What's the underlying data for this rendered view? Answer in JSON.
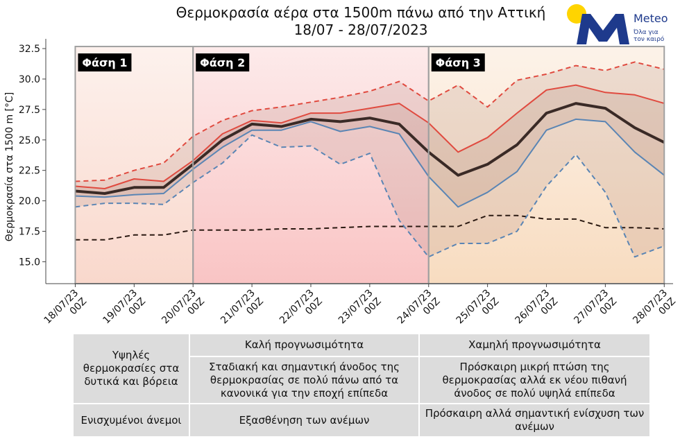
{
  "title": {
    "line1": "Θερμοκρασία αέρα στα 1500m πάνω από την Αττική",
    "line2": "18/07 - 28/07/2023"
  },
  "logo": {
    "brand": "Meteo",
    "tagline_1": "Όλα για",
    "tagline_2": "τον καιρό",
    "sun_color": "#ffd400",
    "mark_color": "#1e3a8c"
  },
  "chart_data": {
    "type": "line",
    "ylabel": "Θερμοκρασία στα 1500 m [°C]",
    "ylim": [
      13.2,
      33.3
    ],
    "yticks": [
      15.0,
      17.5,
      20.0,
      22.5,
      25.0,
      27.5,
      30.0,
      32.5
    ],
    "ytick_labels": [
      "15.0",
      "17.5",
      "20.0",
      "22.5",
      "25.0",
      "27.5",
      "30.0",
      "32.5"
    ],
    "x": [
      0,
      0.5,
      1,
      1.5,
      2,
      2.5,
      3,
      3.5,
      4,
      4.5,
      5,
      5.5,
      6,
      6.5,
      7,
      7.5,
      8,
      8.5,
      9,
      9.5,
      10
    ],
    "xlim": [
      -0.5,
      10.15
    ],
    "xtick_positions": [
      0,
      1,
      2,
      3,
      4,
      5,
      6,
      7,
      8,
      9,
      10
    ],
    "xtick_labels": [
      [
        "18/07/23",
        "00Z"
      ],
      [
        "19/07/23",
        "00Z"
      ],
      [
        "20/07/23",
        "00Z"
      ],
      [
        "21/07/23",
        "00Z"
      ],
      [
        "22/07/23",
        "00Z"
      ],
      [
        "23/07/23",
        "00Z"
      ],
      [
        "24/07/23",
        "00Z"
      ],
      [
        "25/07/23",
        "00Z"
      ],
      [
        "26/07/23",
        "00Z"
      ],
      [
        "27/07/23",
        "00Z"
      ],
      [
        "28/07/23",
        "00Z"
      ]
    ],
    "series": [
      {
        "role": "max",
        "color": "#e04a3f",
        "dash": true,
        "values": [
          21.6,
          21.7,
          22.5,
          23.1,
          25.3,
          26.6,
          27.4,
          27.7,
          28.1,
          28.5,
          29.0,
          29.8,
          28.2,
          29.5,
          27.7,
          29.9,
          30.4,
          31.1,
          30.7,
          31.4,
          30.8
        ]
      },
      {
        "role": "upper",
        "color": "#e04a3f",
        "dash": false,
        "values": [
          21.2,
          21.0,
          21.8,
          21.6,
          23.3,
          25.5,
          26.6,
          26.4,
          27.2,
          27.2,
          27.6,
          28.0,
          26.4,
          24.0,
          25.2,
          27.2,
          29.1,
          29.5,
          28.9,
          28.7,
          28.0
        ]
      },
      {
        "role": "mean",
        "color": "#3a2a26",
        "dash": false,
        "values": [
          20.8,
          20.6,
          21.1,
          21.1,
          23.0,
          25.0,
          26.3,
          26.1,
          26.7,
          26.5,
          26.8,
          26.3,
          24.0,
          22.1,
          23.0,
          24.6,
          27.2,
          28.0,
          27.6,
          26.0,
          24.8
        ]
      },
      {
        "role": "lower",
        "color": "#5a85b4",
        "dash": false,
        "values": [
          20.4,
          20.3,
          20.5,
          20.6,
          22.6,
          24.4,
          25.8,
          25.8,
          26.5,
          25.7,
          26.1,
          25.5,
          22.0,
          19.5,
          20.7,
          22.4,
          25.8,
          26.7,
          26.5,
          24.0,
          22.1
        ]
      },
      {
        "role": "min",
        "color": "#5a85b4",
        "dash": true,
        "values": [
          19.5,
          19.8,
          19.8,
          19.7,
          21.5,
          23.1,
          25.4,
          24.4,
          24.5,
          23.0,
          23.9,
          18.4,
          15.4,
          16.5,
          16.5,
          17.5,
          21.2,
          23.8,
          20.7,
          15.4,
          16.3
        ]
      },
      {
        "role": "climatology",
        "color": "#2b1a12",
        "dash": true,
        "values": [
          16.8,
          16.8,
          17.2,
          17.2,
          17.6,
          17.6,
          17.6,
          17.7,
          17.7,
          17.8,
          17.9,
          17.9,
          17.9,
          17.9,
          18.8,
          18.8,
          18.5,
          18.5,
          17.8,
          17.8,
          17.7
        ]
      }
    ],
    "phases": [
      {
        "label": "Φάση 1",
        "start": 0,
        "end": 2,
        "fill": "#f9d8cc"
      },
      {
        "label": "Φάση 2",
        "start": 2,
        "end": 6,
        "fill": "#f9c4c4"
      },
      {
        "label": "Φάση 3",
        "start": 6,
        "end": 10,
        "fill": "#f8dcc0"
      }
    ],
    "band_fill": "#9a6a60",
    "grid": false
  },
  "summary": {
    "col1_row12": "Υψηλές θερμοκρασίες στα δυτικά και βόρεια",
    "col2_row1": "Καλή προγνωσιμότητα",
    "col3_row1": "Χαμηλή προγνωσιμότητα",
    "col2_row2": "Σταδιακή και σημαντική άνοδος της θερμοκρασίας σε πολύ πάνω από τα κανονικά για την εποχή επίπεδα",
    "col3_row2": "Πρόσκαιρη μικρή πτώση της θερμοκρασίας αλλά εκ νέου πιθανή άνοδος σε πολύ υψηλά επίπεδα",
    "col1_row3": "Ενισχυμένοι άνεμοι",
    "col2_row3": "Εξασθένηση των ανέμων",
    "col3_row3": "Πρόσκαιρη αλλά σημαντική ενίσχυση των ανέμων"
  }
}
